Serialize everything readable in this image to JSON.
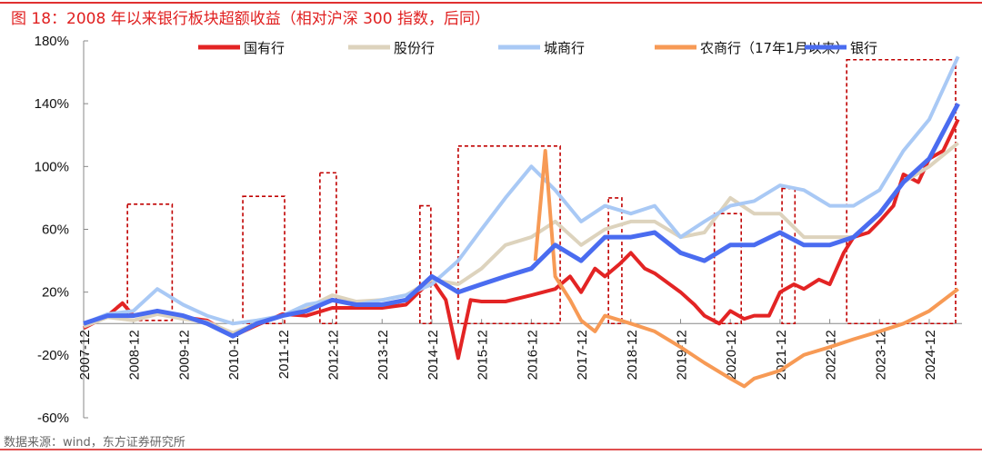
{
  "title": "图 18：2008 年以来银行板块超额收益（相对沪深 300 指数，后同）",
  "source": "数据来源：wind，东方证券研究所",
  "chart_data": {
    "type": "line",
    "title": "2008年以来银行板块超额收益（相对沪深300指数）",
    "xlabel": "",
    "ylabel": "",
    "ylim": [
      -60,
      180
    ],
    "yticks": [
      -60,
      -20,
      20,
      60,
      100,
      140,
      180
    ],
    "ytick_labels": [
      "-60%",
      "-20%",
      "20%",
      "60%",
      "100%",
      "140%",
      "180%"
    ],
    "xlim": [
      2007.92,
      2025.55
    ],
    "xticks": [
      2007.92,
      2008.92,
      2009.92,
      2010.92,
      2011.92,
      2012.92,
      2013.92,
      2014.92,
      2015.92,
      2016.92,
      2017.92,
      2018.92,
      2019.92,
      2020.92,
      2021.92,
      2022.92,
      2023.92,
      2024.92
    ],
    "xtick_labels": [
      "2007-12",
      "2008-12",
      "2009-12",
      "2010-12",
      "2011-12",
      "2012-12",
      "2013-12",
      "2014-12",
      "2015-12",
      "2016-12",
      "2017-12",
      "2018-12",
      "2019-12",
      "2020-12",
      "2021-12",
      "2022-12",
      "2023-12",
      "2024-12"
    ],
    "legend_position": "top",
    "series": [
      {
        "name": "国有行",
        "color": "#e32424",
        "width": 4,
        "x": [
          2007.92,
          2008.4,
          2008.7,
          2008.92,
          2009.4,
          2009.92,
          2010.4,
          2010.92,
          2011.4,
          2011.92,
          2012.4,
          2012.92,
          2013.4,
          2013.92,
          2014.4,
          2014.92,
          2015.2,
          2015.45,
          2015.7,
          2015.92,
          2016.4,
          2016.92,
          2017.4,
          2017.7,
          2017.92,
          2018.2,
          2018.4,
          2018.7,
          2018.92,
          2019.2,
          2019.4,
          2019.92,
          2020.2,
          2020.4,
          2020.7,
          2020.92,
          2021.2,
          2021.4,
          2021.7,
          2021.92,
          2022.2,
          2022.4,
          2022.7,
          2022.92,
          2023.2,
          2023.4,
          2023.7,
          2023.92,
          2024.2,
          2024.4,
          2024.7,
          2024.92,
          2025.2,
          2025.5
        ],
        "y": [
          -3,
          5,
          13,
          5,
          8,
          4,
          2,
          -8,
          -1,
          6,
          5,
          10,
          10,
          10,
          12,
          28,
          15,
          -22,
          15,
          14,
          14,
          18,
          22,
          30,
          20,
          35,
          30,
          38,
          45,
          35,
          32,
          20,
          12,
          5,
          0,
          8,
          3,
          5,
          5,
          20,
          25,
          22,
          28,
          25,
          45,
          55,
          58,
          65,
          75,
          95,
          90,
          105,
          110,
          130
        ]
      },
      {
        "name": "股份行",
        "color": "#ddd3bd",
        "width": 4,
        "x": [
          2007.92,
          2008.4,
          2008.92,
          2009.4,
          2009.92,
          2010.4,
          2010.92,
          2011.4,
          2011.92,
          2012.4,
          2012.92,
          2013.4,
          2013.92,
          2014.4,
          2014.92,
          2015.45,
          2015.92,
          2016.4,
          2016.92,
          2017.4,
          2017.92,
          2018.4,
          2018.92,
          2019.4,
          2019.92,
          2020.4,
          2020.92,
          2021.4,
          2021.92,
          2022.4,
          2022.92,
          2023.4,
          2023.92,
          2024.4,
          2024.92,
          2025.5
        ],
        "y": [
          -2,
          4,
          2,
          6,
          3,
          1,
          -6,
          0,
          5,
          10,
          18,
          14,
          15,
          18,
          28,
          25,
          35,
          50,
          55,
          65,
          50,
          60,
          65,
          65,
          55,
          58,
          80,
          70,
          70,
          55,
          55,
          55,
          70,
          90,
          100,
          115
        ]
      },
      {
        "name": "城商行",
        "color": "#a9c9f5",
        "width": 4,
        "x": [
          2007.92,
          2008.4,
          2008.92,
          2009.4,
          2009.92,
          2010.4,
          2010.92,
          2011.4,
          2011.92,
          2012.4,
          2012.92,
          2013.4,
          2013.92,
          2014.4,
          2014.92,
          2015.45,
          2015.92,
          2016.4,
          2016.92,
          2017.4,
          2017.92,
          2018.4,
          2018.92,
          2019.4,
          2019.92,
          2020.4,
          2020.92,
          2021.4,
          2021.92,
          2022.4,
          2022.92,
          2023.4,
          2023.92,
          2024.4,
          2024.92,
          2025.5
        ],
        "y": [
          0,
          6,
          8,
          22,
          12,
          5,
          0,
          2,
          5,
          12,
          15,
          12,
          15,
          18,
          25,
          40,
          60,
          80,
          100,
          85,
          65,
          75,
          70,
          75,
          55,
          65,
          75,
          78,
          88,
          85,
          75,
          75,
          85,
          110,
          130,
          170
        ]
      },
      {
        "name": "农商行（17年1月以来）",
        "color": "#f79a55",
        "width": 4,
        "x": [
          2017.0,
          2017.2,
          2017.4,
          2017.7,
          2017.92,
          2018.2,
          2018.4,
          2018.92,
          2019.4,
          2019.92,
          2020.4,
          2020.92,
          2021.2,
          2021.4,
          2021.92,
          2022.4,
          2022.92,
          2023.4,
          2023.92,
          2024.4,
          2024.92,
          2025.5
        ],
        "y": [
          40,
          110,
          30,
          15,
          2,
          -5,
          5,
          0,
          -5,
          -15,
          -25,
          -35,
          -40,
          -35,
          -30,
          -20,
          -15,
          -10,
          -5,
          0,
          8,
          22
        ]
      },
      {
        "name": "银行",
        "color": "#4a6cf0",
        "width": 5,
        "x": [
          2007.92,
          2008.4,
          2008.92,
          2009.4,
          2009.92,
          2010.4,
          2010.92,
          2011.4,
          2011.92,
          2012.4,
          2012.92,
          2013.4,
          2013.92,
          2014.4,
          2014.92,
          2015.45,
          2015.92,
          2016.4,
          2016.92,
          2017.4,
          2017.92,
          2018.4,
          2018.92,
          2019.4,
          2019.92,
          2020.4,
          2020.92,
          2021.4,
          2021.92,
          2022.4,
          2022.92,
          2023.4,
          2023.92,
          2024.4,
          2024.92,
          2025.5
        ],
        "y": [
          0,
          5,
          5,
          8,
          5,
          0,
          -8,
          0,
          5,
          8,
          15,
          12,
          12,
          15,
          30,
          20,
          25,
          30,
          35,
          50,
          40,
          55,
          55,
          58,
          45,
          40,
          50,
          50,
          58,
          50,
          50,
          55,
          70,
          90,
          105,
          140
        ]
      }
    ],
    "highlight_boxes": [
      {
        "x": [
          2008.8,
          2009.7
        ],
        "y": [
          2,
          76
        ]
      },
      {
        "x": [
          2011.12,
          2011.96
        ],
        "y": [
          0,
          81
        ]
      },
      {
        "x": [
          2012.67,
          2013.0
        ],
        "y": [
          0,
          96
        ]
      },
      {
        "x": [
          2014.68,
          2014.9
        ],
        "y": [
          0,
          75
        ]
      },
      {
        "x": [
          2015.45,
          2017.5
        ],
        "y": [
          0,
          113
        ]
      },
      {
        "x": [
          2018.47,
          2018.74
        ],
        "y": [
          0,
          80
        ]
      },
      {
        "x": [
          2020.6,
          2021.14
        ],
        "y": [
          0,
          70
        ]
      },
      {
        "x": [
          2021.96,
          2022.22
        ],
        "y": [
          0,
          86
        ]
      },
      {
        "x": [
          2023.26,
          2025.45
        ],
        "y": [
          0,
          168
        ]
      }
    ]
  }
}
